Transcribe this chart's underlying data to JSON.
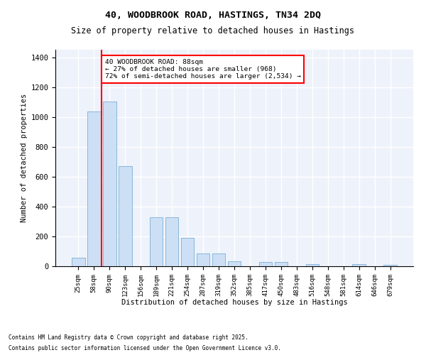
{
  "title_line1": "40, WOODBROOK ROAD, HASTINGS, TN34 2DQ",
  "title_line2": "Size of property relative to detached houses in Hastings",
  "xlabel": "Distribution of detached houses by size in Hastings",
  "ylabel": "Number of detached properties",
  "categories": [
    "25sqm",
    "58sqm",
    "90sqm",
    "123sqm",
    "156sqm",
    "189sqm",
    "221sqm",
    "254sqm",
    "287sqm",
    "319sqm",
    "352sqm",
    "385sqm",
    "417sqm",
    "450sqm",
    "483sqm",
    "516sqm",
    "548sqm",
    "581sqm",
    "614sqm",
    "646sqm",
    "679sqm"
  ],
  "values": [
    55,
    1035,
    1105,
    670,
    0,
    330,
    330,
    190,
    85,
    85,
    35,
    0,
    30,
    30,
    0,
    15,
    0,
    0,
    13,
    0,
    10
  ],
  "bar_color": "#ccdff5",
  "bar_edge_color": "#7aafd4",
  "red_line_label": "40 WOODBROOK ROAD: 88sqm",
  "annotation_line2": "← 27% of detached houses are smaller (968)",
  "annotation_line3": "72% of semi-detached houses are larger (2,534) →",
  "ylim": [
    0,
    1450
  ],
  "yticks": [
    0,
    200,
    400,
    600,
    800,
    1000,
    1200,
    1400
  ],
  "background_color": "#eef2fb",
  "grid_color": "white",
  "footer_line1": "Contains HM Land Registry data © Crown copyright and database right 2025.",
  "footer_line2": "Contains public sector information licensed under the Open Government Licence v3.0."
}
